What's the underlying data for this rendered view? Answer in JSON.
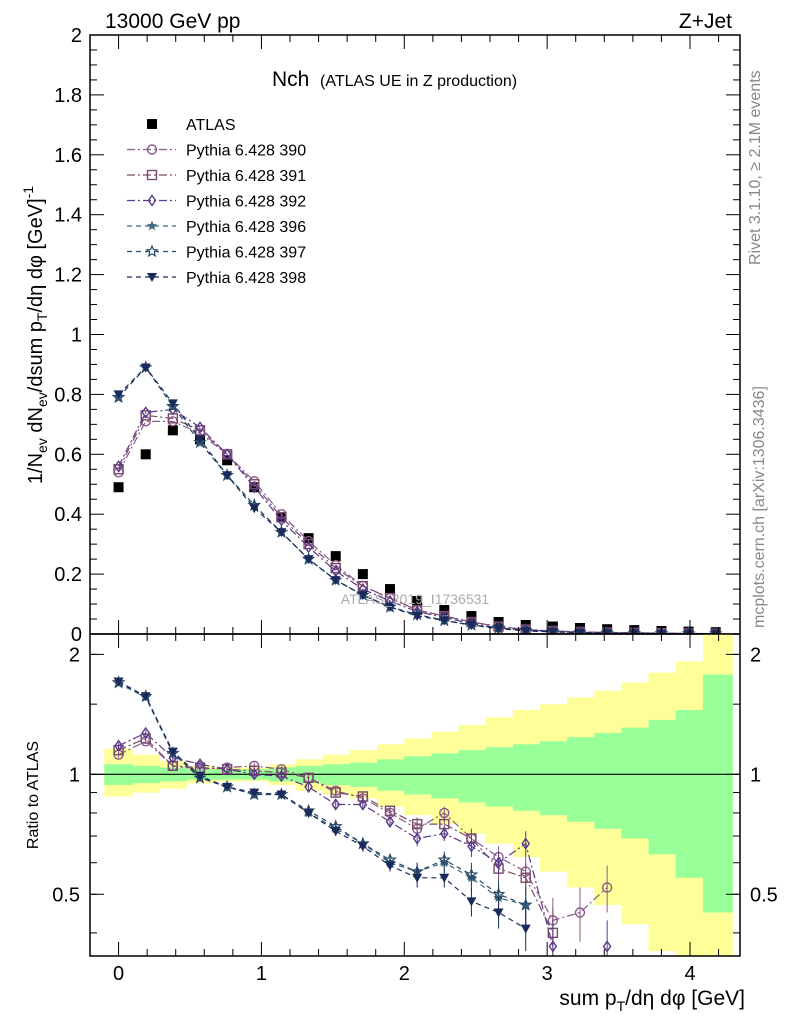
{
  "header": {
    "left": "13000 GeV pp",
    "right": "Z+Jet"
  },
  "side_text": {
    "rivet": "Rivet 3.1.10, ≥ 2.1M events",
    "mcplots": "mcplots.cern.ch [arXiv:1306.3436]"
  },
  "watermark": "ATLAS_2019_I1736531",
  "chart_data": [
    {
      "type": "scatter",
      "panel": "main",
      "title": "Nch",
      "subtitle": "(ATLAS UE in Z production)",
      "ylabel": "1/N_ev dN_ev/dsum p_T/dη dφ [GeV]^-1",
      "xlim": [
        -0.2,
        4.35
      ],
      "ylim": [
        0,
        2
      ],
      "x_ticks": [
        0,
        1,
        2,
        3,
        4
      ],
      "y_ticks": [
        0.2,
        0.4,
        0.6,
        0.8,
        1,
        1.2,
        1.4,
        1.6,
        1.8,
        2
      ],
      "y_tick_labels": [
        "0.2",
        "0.4",
        "0.6",
        "0.8",
        "1",
        "1.2",
        "1.4",
        "1.6",
        "1.8",
        "2"
      ],
      "bottom_tick_label": "0",
      "legend_position": "top-left",
      "x": [
        0,
        0.19,
        0.38,
        0.57,
        0.76,
        0.95,
        1.14,
        1.33,
        1.52,
        1.71,
        1.9,
        2.09,
        2.28,
        2.47,
        2.66,
        2.85,
        3.04,
        3.23,
        3.42,
        3.61,
        3.8,
        3.99,
        4.18
      ],
      "series": [
        {
          "name": "ATLAS",
          "marker": "filled-square",
          "color": "#000000",
          "values": [
            0.49,
            0.6,
            0.68,
            0.65,
            0.58,
            0.49,
            0.39,
            0.32,
            0.26,
            0.2,
            0.15,
            0.11,
            0.08,
            0.06,
            0.04,
            0.03,
            0.025,
            0.02,
            0.016,
            0.013,
            0.01,
            0.008,
            0.006
          ]
        },
        {
          "name": "Pythia 6.428 390",
          "marker": "open-circle",
          "color": "#8a5a8a",
          "values": [
            0.54,
            0.71,
            0.71,
            0.67,
            0.6,
            0.51,
            0.4,
            0.31,
            0.23,
            0.16,
            0.12,
            0.08,
            0.06,
            0.04,
            0.025,
            0.015,
            0.01,
            0.007,
            0.005,
            0.004,
            0.003,
            0.002,
            0.001
          ]
        },
        {
          "name": "Pythia 6.428 391",
          "marker": "open-square",
          "color": "#7a4a6a",
          "values": [
            0.55,
            0.73,
            0.72,
            0.68,
            0.6,
            0.5,
            0.39,
            0.3,
            0.22,
            0.16,
            0.12,
            0.08,
            0.06,
            0.04,
            0.025,
            0.015,
            0.01,
            0.007,
            0.005,
            0.004,
            0.003,
            0.002,
            0.001
          ]
        },
        {
          "name": "Pythia 6.428 392",
          "marker": "open-diamond",
          "color": "#5a3a8a",
          "values": [
            0.56,
            0.74,
            0.75,
            0.69,
            0.6,
            0.49,
            0.38,
            0.29,
            0.21,
            0.15,
            0.11,
            0.075,
            0.055,
            0.035,
            0.02,
            0.014,
            0.009,
            0.006,
            0.004,
            0.003,
            0.002,
            0.001,
            0.001
          ]
        },
        {
          "name": "Pythia 6.428 396",
          "marker": "star",
          "color": "#3a6a7a",
          "values": [
            0.79,
            0.89,
            0.76,
            0.64,
            0.53,
            0.43,
            0.34,
            0.25,
            0.18,
            0.13,
            0.09,
            0.065,
            0.045,
            0.03,
            0.02,
            0.012,
            0.008,
            0.005,
            0.003,
            0.002,
            0.002,
            0.001,
            0.001
          ]
        },
        {
          "name": "Pythia 6.428 397",
          "marker": "open-star",
          "color": "#2a4a6a",
          "values": [
            0.79,
            0.89,
            0.76,
            0.64,
            0.53,
            0.43,
            0.34,
            0.25,
            0.18,
            0.13,
            0.09,
            0.065,
            0.045,
            0.03,
            0.02,
            0.012,
            0.008,
            0.005,
            0.003,
            0.002,
            0.002,
            0.001,
            0.001
          ]
        },
        {
          "name": "Pythia 6.428 398",
          "marker": "filled-triangle-down",
          "color": "#1a2a5a",
          "values": [
            0.8,
            0.89,
            0.77,
            0.65,
            0.53,
            0.42,
            0.34,
            0.25,
            0.18,
            0.13,
            0.09,
            0.06,
            0.045,
            0.03,
            0.018,
            0.01,
            0.007,
            0.004,
            0.003,
            0.002,
            0.001,
            0.001,
            0.001
          ]
        }
      ]
    },
    {
      "type": "scatter",
      "panel": "ratio",
      "xlabel": "sum p_T/dη dφ [GeV]",
      "ylabel": "Ratio to ATLAS",
      "xlim": [
        -0.2,
        4.35
      ],
      "ylim": [
        0.35,
        2.25
      ],
      "log_y": true,
      "x_ticks": [
        0,
        1,
        2,
        3,
        4
      ],
      "x_tick_labels": [
        "0",
        "1",
        "2",
        "3",
        "4"
      ],
      "y_ticks": [
        0.5,
        1,
        2
      ],
      "y_tick_labels": [
        "0.5",
        "1",
        "2"
      ],
      "reference_line": 1,
      "bands": {
        "x_edges": [
          -0.1,
          0.1,
          0.29,
          0.48,
          0.67,
          0.86,
          1.05,
          1.24,
          1.43,
          1.62,
          1.81,
          2.0,
          2.19,
          2.38,
          2.57,
          2.76,
          2.95,
          3.14,
          3.33,
          3.52,
          3.71,
          3.9,
          4.09,
          4.3
        ],
        "inner_low": [
          0.94,
          0.95,
          0.96,
          0.97,
          0.97,
          0.97,
          0.96,
          0.95,
          0.94,
          0.93,
          0.91,
          0.89,
          0.87,
          0.85,
          0.83,
          0.81,
          0.79,
          0.76,
          0.73,
          0.69,
          0.63,
          0.55,
          0.45
        ],
        "inner_high": [
          1.06,
          1.05,
          1.04,
          1.03,
          1.03,
          1.03,
          1.04,
          1.05,
          1.06,
          1.07,
          1.09,
          1.11,
          1.13,
          1.15,
          1.17,
          1.19,
          1.21,
          1.24,
          1.27,
          1.31,
          1.37,
          1.45,
          1.78
        ],
        "outer_low": [
          0.88,
          0.9,
          0.92,
          0.95,
          0.96,
          0.96,
          0.94,
          0.91,
          0.89,
          0.87,
          0.83,
          0.79,
          0.75,
          0.71,
          0.67,
          0.62,
          0.57,
          0.52,
          0.47,
          0.42,
          0.36,
          0.3,
          0.25
        ],
        "outer_high": [
          1.16,
          1.12,
          1.08,
          1.05,
          1.04,
          1.04,
          1.06,
          1.09,
          1.12,
          1.15,
          1.19,
          1.23,
          1.28,
          1.33,
          1.39,
          1.45,
          1.5,
          1.56,
          1.62,
          1.7,
          1.8,
          1.92,
          2.6
        ]
      },
      "series": [
        {
          "name": "Pythia 6.428 390",
          "values": [
            1.12,
            1.21,
            1.05,
            1.03,
            1.04,
            1.05,
            1.03,
            0.98,
            0.91,
            0.87,
            0.8,
            0.73,
            0.8,
            0.69,
            0.62,
            0.57,
            0.43,
            0.45,
            0.52,
            null,
            null,
            null,
            null
          ],
          "err": [
            0.02,
            0.02,
            0.02,
            0.02,
            0.02,
            0.02,
            0.02,
            0.02,
            0.02,
            0.02,
            0.02,
            0.03,
            0.03,
            0.04,
            0.04,
            0.05,
            0.06,
            0.07,
            0.07,
            null,
            null,
            null,
            null
          ]
        },
        {
          "name": "Pythia 6.428 391",
          "values": [
            1.15,
            1.23,
            1.05,
            1.04,
            1.03,
            1.02,
            1.01,
            0.98,
            0.9,
            0.88,
            0.81,
            0.75,
            0.75,
            0.69,
            0.58,
            0.55,
            0.4,
            null,
            null,
            null,
            null,
            null,
            null
          ],
          "err": [
            0.02,
            0.02,
            0.02,
            0.02,
            0.02,
            0.02,
            0.02,
            0.02,
            0.02,
            0.02,
            0.02,
            0.03,
            0.03,
            0.04,
            0.04,
            0.05,
            0.06,
            null,
            null,
            null,
            null,
            null,
            null
          ]
        },
        {
          "name": "Pythia 6.428 392",
          "values": [
            1.18,
            1.27,
            1.1,
            1.06,
            1.03,
            1.0,
            0.99,
            0.93,
            0.84,
            0.84,
            0.76,
            0.69,
            0.71,
            0.66,
            0.6,
            0.67,
            0.37,
            null,
            0.37,
            null,
            null,
            null,
            null
          ],
          "err": [
            0.02,
            0.02,
            0.02,
            0.02,
            0.02,
            0.02,
            0.02,
            0.02,
            0.02,
            0.02,
            0.02,
            0.03,
            0.03,
            0.04,
            0.04,
            0.05,
            0.06,
            null,
            0.06,
            null,
            null,
            null,
            null
          ]
        },
        {
          "name": "Pythia 6.428 396",
          "values": [
            1.69,
            1.56,
            1.13,
            0.98,
            0.93,
            0.89,
            0.89,
            0.8,
            0.73,
            0.67,
            0.6,
            0.57,
            0.6,
            0.55,
            0.49,
            0.47,
            null,
            null,
            null,
            null,
            null,
            null,
            null
          ],
          "err": [
            0.02,
            0.02,
            0.02,
            0.02,
            0.02,
            0.02,
            0.02,
            0.02,
            0.02,
            0.02,
            0.02,
            0.03,
            0.03,
            0.04,
            0.04,
            0.05,
            null,
            null,
            null,
            null,
            null,
            null,
            null
          ]
        },
        {
          "name": "Pythia 6.428 397",
          "values": [
            1.7,
            1.57,
            1.13,
            0.98,
            0.93,
            0.89,
            0.89,
            0.81,
            0.74,
            0.67,
            0.61,
            0.57,
            0.61,
            0.56,
            0.5,
            0.47,
            null,
            null,
            null,
            null,
            null,
            null,
            null
          ],
          "err": [
            0.02,
            0.02,
            0.02,
            0.02,
            0.02,
            0.02,
            0.02,
            0.02,
            0.02,
            0.02,
            0.02,
            0.03,
            0.03,
            0.04,
            0.04,
            0.05,
            null,
            null,
            null,
            null,
            null,
            null,
            null
          ]
        },
        {
          "name": "Pythia 6.428 398",
          "values": [
            1.71,
            1.57,
            1.14,
            0.99,
            0.93,
            0.9,
            0.89,
            0.8,
            0.72,
            0.66,
            0.59,
            0.55,
            0.55,
            0.48,
            0.45,
            0.41,
            null,
            null,
            null,
            null,
            null,
            null,
            null
          ],
          "err": [
            0.02,
            0.02,
            0.02,
            0.02,
            0.02,
            0.02,
            0.02,
            0.02,
            0.02,
            0.02,
            0.02,
            0.03,
            0.03,
            0.04,
            0.04,
            0.05,
            null,
            null,
            null,
            null,
            null,
            null,
            null
          ]
        }
      ]
    }
  ]
}
